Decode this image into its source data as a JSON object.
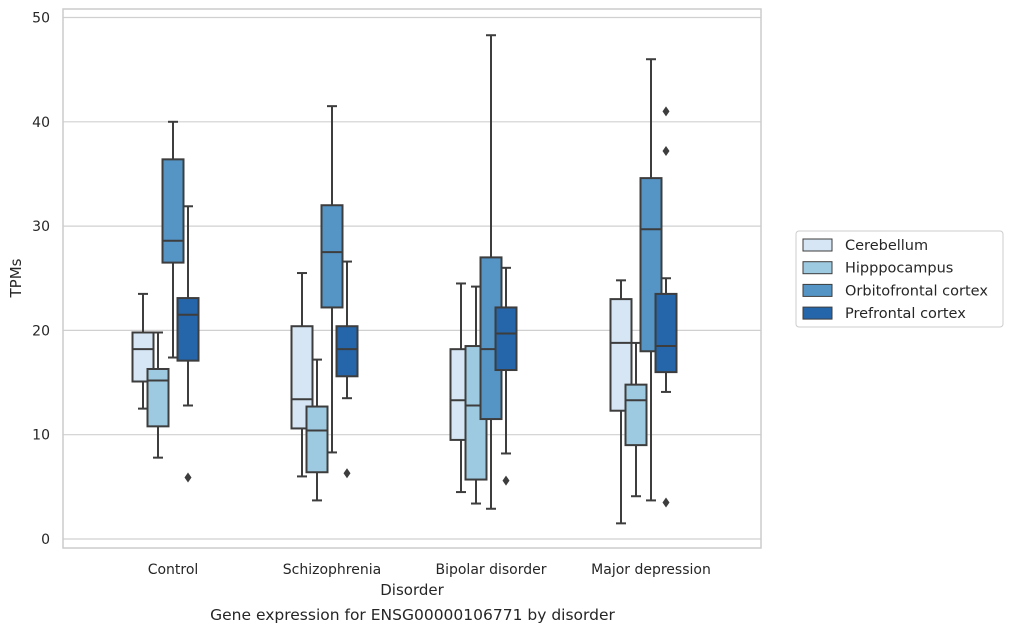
{
  "caption": "Gene expression for ENSG00000106771 by disorder",
  "chart_data": {
    "type": "box",
    "title": "",
    "xlabel": "Disorder",
    "ylabel": "TPMs",
    "ylim": [
      -1,
      51
    ],
    "yticks": [
      0,
      10,
      20,
      30,
      40,
      50
    ],
    "grid": "horizontal",
    "legend_position": "right",
    "categories": [
      "Control",
      "Schizophrenia",
      "Bipolar disorder",
      "Major depression"
    ],
    "series": [
      {
        "name": "Cerebellum",
        "color": "#d6e6f4",
        "boxes": [
          {
            "whislo": 12.5,
            "q1": 15.1,
            "med": 18.2,
            "q3": 19.8,
            "whishi": 23.5,
            "fliers": []
          },
          {
            "whislo": 6.0,
            "q1": 10.6,
            "med": 13.4,
            "q3": 20.4,
            "whishi": 25.5,
            "fliers": []
          },
          {
            "whislo": 4.5,
            "q1": 9.5,
            "med": 13.3,
            "q3": 18.2,
            "whishi": 24.5,
            "fliers": []
          },
          {
            "whislo": 1.5,
            "q1": 12.3,
            "med": 18.8,
            "q3": 23.0,
            "whishi": 24.8,
            "fliers": []
          }
        ]
      },
      {
        "name": "Hipppocampus",
        "color": "#9ecae1",
        "boxes": [
          {
            "whislo": 7.8,
            "q1": 10.8,
            "med": 15.2,
            "q3": 16.3,
            "whishi": 19.8,
            "fliers": []
          },
          {
            "whislo": 3.7,
            "q1": 6.4,
            "med": 10.4,
            "q3": 12.7,
            "whishi": 17.2,
            "fliers": []
          },
          {
            "whislo": 3.4,
            "q1": 5.7,
            "med": 12.8,
            "q3": 18.5,
            "whishi": 24.2,
            "fliers": []
          },
          {
            "whislo": 4.1,
            "q1": 9.0,
            "med": 13.3,
            "q3": 14.8,
            "whishi": 18.8,
            "fliers": []
          }
        ]
      },
      {
        "name": "Orbitofrontal cortex",
        "color": "#5495c6",
        "boxes": [
          {
            "whislo": 17.4,
            "q1": 26.5,
            "med": 28.6,
            "q3": 36.4,
            "whishi": 40.0,
            "fliers": []
          },
          {
            "whislo": 8.3,
            "q1": 22.2,
            "med": 27.5,
            "q3": 32.0,
            "whishi": 41.5,
            "fliers": []
          },
          {
            "whislo": 2.9,
            "q1": 11.5,
            "med": 18.2,
            "q3": 27.0,
            "whishi": 48.3,
            "fliers": []
          },
          {
            "whislo": 3.7,
            "q1": 18.0,
            "med": 29.7,
            "q3": 34.6,
            "whishi": 46.0,
            "fliers": []
          }
        ]
      },
      {
        "name": "Prefrontal cortex",
        "color": "#2565a9",
        "boxes": [
          {
            "whislo": 12.8,
            "q1": 17.1,
            "med": 21.5,
            "q3": 23.1,
            "whishi": 31.9,
            "fliers": [
              5.9
            ]
          },
          {
            "whislo": 13.5,
            "q1": 15.6,
            "med": 18.2,
            "q3": 20.4,
            "whishi": 26.6,
            "fliers": [
              6.3
            ]
          },
          {
            "whislo": 8.2,
            "q1": 16.2,
            "med": 19.7,
            "q3": 22.2,
            "whishi": 26.0,
            "fliers": [
              5.6
            ]
          },
          {
            "whislo": 14.1,
            "q1": 16.0,
            "med": 18.5,
            "q3": 23.5,
            "whishi": 25.0,
            "fliers": [
              3.5,
              37.2,
              41.0
            ]
          }
        ]
      }
    ]
  }
}
